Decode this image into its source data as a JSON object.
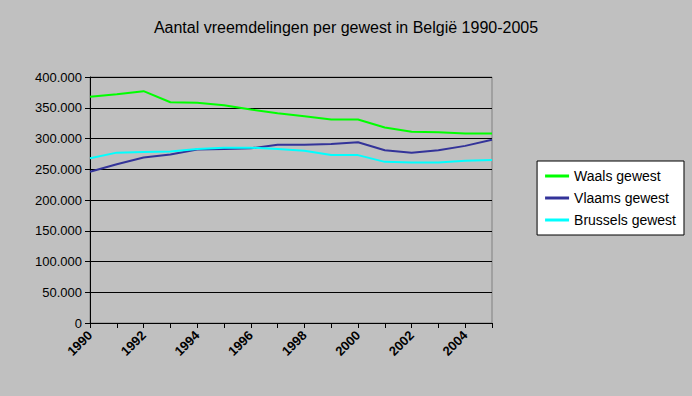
{
  "chart_data": {
    "type": "line",
    "title": "Aantal vreemdelingen per gewest in België 1990-2005",
    "categories": [
      "1990",
      null,
      "1992",
      null,
      "1994",
      null,
      "1996",
      null,
      "1998",
      null,
      "2000",
      null,
      "2002",
      null,
      "2004",
      null
    ],
    "series": [
      {
        "name": "Waals gewest",
        "color": "#00ff00",
        "values": [
          368000,
          372000,
          377000,
          359000,
          358000,
          354000,
          347000,
          341000,
          336000,
          331000,
          331000,
          318000,
          311000,
          310000,
          308000,
          308000
        ]
      },
      {
        "name": "Vlaams gewest",
        "color": "#333399",
        "values": [
          246000,
          258000,
          269000,
          274000,
          282000,
          283000,
          284000,
          290000,
          290000,
          291000,
          294000,
          281000,
          277000,
          281000,
          288000,
          298000
        ]
      },
      {
        "name": "Brussels gewest",
        "color": "#00ffff",
        "values": [
          268000,
          277000,
          278000,
          279000,
          283000,
          285000,
          285000,
          283000,
          280000,
          273000,
          273000,
          262000,
          261000,
          261000,
          264000,
          265000
        ]
      }
    ],
    "ylim": [
      0,
      400000
    ],
    "yticks": [
      0,
      {
        "value": 50000,
        "label": "50.000"
      },
      {
        "value": 100000,
        "label": "100.000"
      },
      {
        "value": 150000,
        "label": "150.000"
      },
      {
        "value": 200000,
        "label": "200.000"
      },
      {
        "value": 250000,
        "label": "250.000"
      },
      {
        "value": 300000,
        "label": "300.000"
      },
      {
        "value": 350000,
        "label": "350.000"
      },
      {
        "value": 400000,
        "label": "400.000"
      }
    ],
    "grid": true,
    "legend": "right",
    "marker": "none"
  }
}
